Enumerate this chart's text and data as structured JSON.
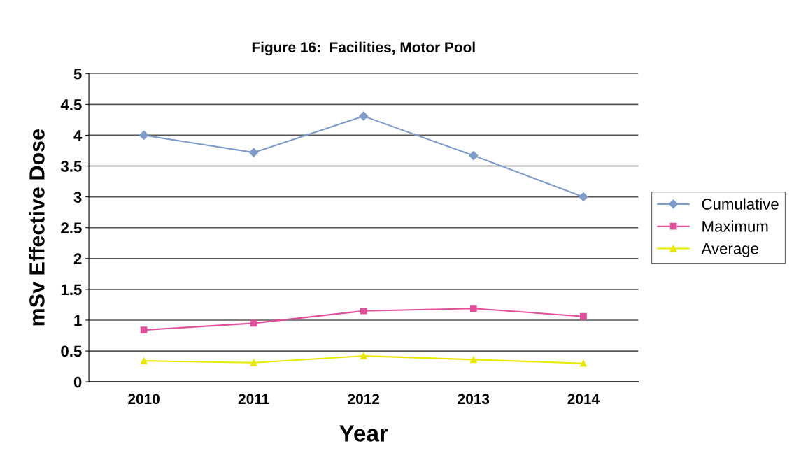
{
  "chart_data": {
    "type": "line",
    "title": "Figure 16:  Facilities, Motor Pool",
    "xlabel": "Year",
    "ylabel": "mSv Effective Dose",
    "categories": [
      "2010",
      "2011",
      "2012",
      "2013",
      "2014"
    ],
    "series": [
      {
        "name": "Cumulative",
        "color": "#7f9cc8",
        "values": [
          4.0,
          3.72,
          4.31,
          3.67,
          3.0
        ],
        "marker": "diamond"
      },
      {
        "name": "Maximum",
        "color": "#e0509a",
        "values": [
          0.84,
          0.95,
          1.15,
          1.19,
          1.06
        ],
        "marker": "square"
      },
      {
        "name": "Average",
        "color": "#e8e800",
        "values": [
          0.34,
          0.31,
          0.42,
          0.36,
          0.3
        ],
        "marker": "triangle"
      }
    ],
    "ylim": [
      0,
      5
    ],
    "yticks": [
      0,
      0.5,
      1,
      1.5,
      2,
      2.5,
      3,
      3.5,
      4,
      4.5,
      5
    ],
    "grid": "y",
    "legend": "right"
  }
}
